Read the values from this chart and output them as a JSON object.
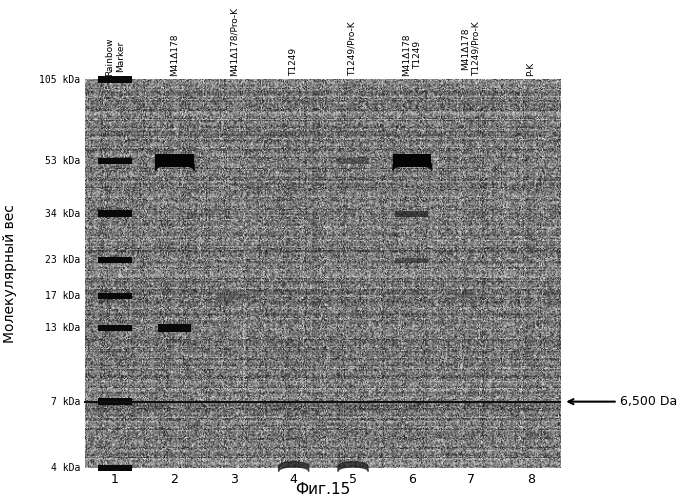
{
  "ylabel": "Молекулярный вес",
  "xlabel": "Фиг.15",
  "lane_labels": [
    "Rainbow\nMarker",
    "M41Δ178",
    "M41Δ178/Pro-K",
    "T1249",
    "T1249/Pro-K",
    "M41Δ178\nT1249",
    "M41Δ178\nT1249/Pro-K",
    "P-K"
  ],
  "lane_numbers": [
    "1",
    "2",
    "3",
    "4",
    "5",
    "6",
    "7",
    "8"
  ],
  "mw_labels": [
    "105 kDa",
    "53 kDa",
    "34 kDa",
    "23 kDa",
    "17 kDa",
    "13 kDa",
    "7 kDa",
    "4 kDa"
  ],
  "mw_positions": [
    105,
    53,
    34,
    23,
    17,
    13,
    7,
    4
  ],
  "annotation": "6,500 Da",
  "fig_width": 6.79,
  "fig_height": 5.0
}
